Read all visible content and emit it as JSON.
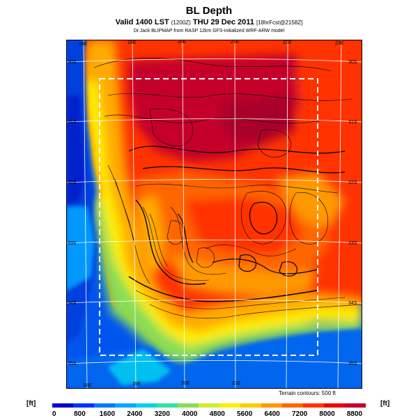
{
  "title": "BL Depth",
  "subtitle_main": "Valid 1400 LST",
  "subtitle_small1": "(1200Z)",
  "subtitle_date": "THU 29 Dec 2011",
  "subtitle_small2": "[18hrFcst@2158Z]",
  "credit": "Dr.Jack BLIPMAP from RASP 12km GFS-initialized WRF-ARW model",
  "terrain_note": "Terrain contours: 500 ft",
  "unit_label": "[ft]",
  "legend": {
    "ticks": [
      "0",
      "800",
      "1600",
      "2400",
      "3200",
      "4000",
      "4800",
      "5600",
      "6400",
      "7200",
      "8000",
      "8800"
    ],
    "colors": [
      "#0000cc",
      "#0033ff",
      "#0077ff",
      "#00a8ff",
      "#00d2ee",
      "#33e0aa",
      "#88dd55",
      "#ccee33",
      "#ffee00",
      "#ffcc00",
      "#ff9900",
      "#ff6600",
      "#ff3300",
      "#ee0000",
      "#c4002a"
    ]
  },
  "top_lon_labels": [
    "18E",
    "19E",
    "20E",
    "21E",
    "22E",
    "23E"
  ],
  "bottom_lon_labels": [
    "18E",
    "19E",
    "20E",
    "21E"
  ],
  "left_lat_labels": [
    "30S",
    "31S",
    "32S",
    "33S",
    "34S",
    "35S"
  ],
  "right_lat_labels": [
    "30S",
    "31S",
    "32S",
    "33S",
    "34S",
    "35S"
  ]
}
